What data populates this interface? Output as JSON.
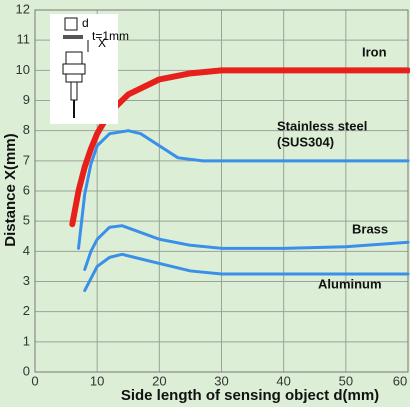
{
  "chart_data": {
    "type": "line",
    "ylabel": "Distance X(mm)",
    "xlabel": "Side length of sensing object d(mm)",
    "xlim": [
      0,
      60
    ],
    "xticks": [
      0,
      10,
      20,
      30,
      40,
      50,
      60
    ],
    "ylim": [
      0,
      12
    ],
    "yticks": [
      0,
      1,
      2,
      3,
      4,
      5,
      6,
      7,
      8,
      9,
      10,
      11,
      12
    ],
    "grid": true,
    "inset": {
      "d": "d",
      "t": "t=1mm",
      "x": "X"
    },
    "series": [
      {
        "name": [
          "Iron"
        ],
        "color": "#e8201c",
        "width": 6,
        "x": [
          6,
          7,
          8,
          9,
          10,
          12,
          15,
          20,
          25,
          30,
          60
        ],
        "values": [
          4.9,
          6,
          6.8,
          7.4,
          7.9,
          8.6,
          9.2,
          9.7,
          9.9,
          10,
          10
        ]
      },
      {
        "name": [
          "Stainless steel",
          "(SUS304)"
        ],
        "color": "#3a8fe8",
        "width": 3,
        "x": [
          7,
          8,
          9,
          10,
          12,
          15,
          17,
          20,
          23,
          27,
          60
        ],
        "values": [
          4.1,
          5.9,
          6.9,
          7.5,
          7.9,
          8,
          7.9,
          7.5,
          7.1,
          7,
          7
        ]
      },
      {
        "name": [
          "Brass"
        ],
        "color": "#3a8fe8",
        "width": 3,
        "x": [
          8,
          9,
          10,
          12,
          14,
          16,
          20,
          25,
          30,
          40,
          50,
          60
        ],
        "values": [
          3.4,
          4,
          4.4,
          4.8,
          4.85,
          4.7,
          4.4,
          4.2,
          4.1,
          4.1,
          4.15,
          4.3
        ]
      },
      {
        "name": [
          "Aluminum"
        ],
        "color": "#3a8fe8",
        "width": 3,
        "x": [
          8,
          9,
          10,
          12,
          14,
          16,
          20,
          25,
          30,
          40,
          60
        ],
        "values": [
          2.7,
          3.1,
          3.5,
          3.8,
          3.9,
          3.8,
          3.6,
          3.35,
          3.25,
          3.25,
          3.25
        ]
      }
    ]
  }
}
